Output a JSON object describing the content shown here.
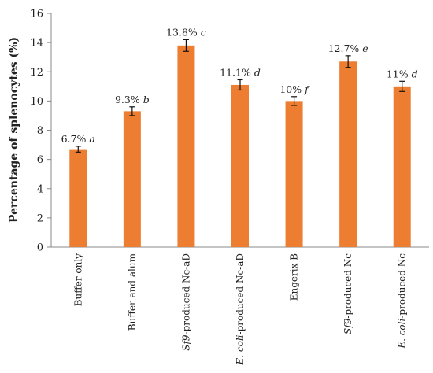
{
  "chart_data": {
    "type": "bar",
    "title": "",
    "xlabel": "",
    "ylabel": "Percentage of splenocytes (%)",
    "ylim": [
      0,
      16
    ],
    "yticks": [
      0,
      2,
      4,
      6,
      8,
      10,
      12,
      14,
      16
    ],
    "grid": false,
    "bar_color": "#ED7D31",
    "categories": [
      {
        "pre": "",
        "em": "",
        "post": "Buffer only"
      },
      {
        "pre": "",
        "em": "",
        "post": "Buffer and alum"
      },
      {
        "pre": "",
        "em": "Sf9",
        "post": "-produced Nc-aD"
      },
      {
        "pre": "",
        "em": "E. coli",
        "post": "-produced Nc-aD"
      },
      {
        "pre": "",
        "em": "",
        "post": "Engerix B"
      },
      {
        "pre": "",
        "em": "Sf9",
        "post": "-produced Nc"
      },
      {
        "pre": "",
        "em": "E. coli",
        "post": "-produced Nc"
      }
    ],
    "values": [
      6.7,
      9.3,
      13.8,
      11.1,
      10.0,
      12.7,
      11.0
    ],
    "errors": [
      0.2,
      0.3,
      0.4,
      0.35,
      0.3,
      0.4,
      0.35
    ],
    "data_labels": [
      {
        "value": "6.7%",
        "letter": "a"
      },
      {
        "value": "9.3%",
        "letter": "b"
      },
      {
        "value": "13.8%",
        "letter": "c"
      },
      {
        "value": "11.1%",
        "letter": "d"
      },
      {
        "value": "10%",
        "letter": "f"
      },
      {
        "value": "12.7%",
        "letter": "e"
      },
      {
        "value": "11%",
        "letter": "d"
      }
    ]
  }
}
